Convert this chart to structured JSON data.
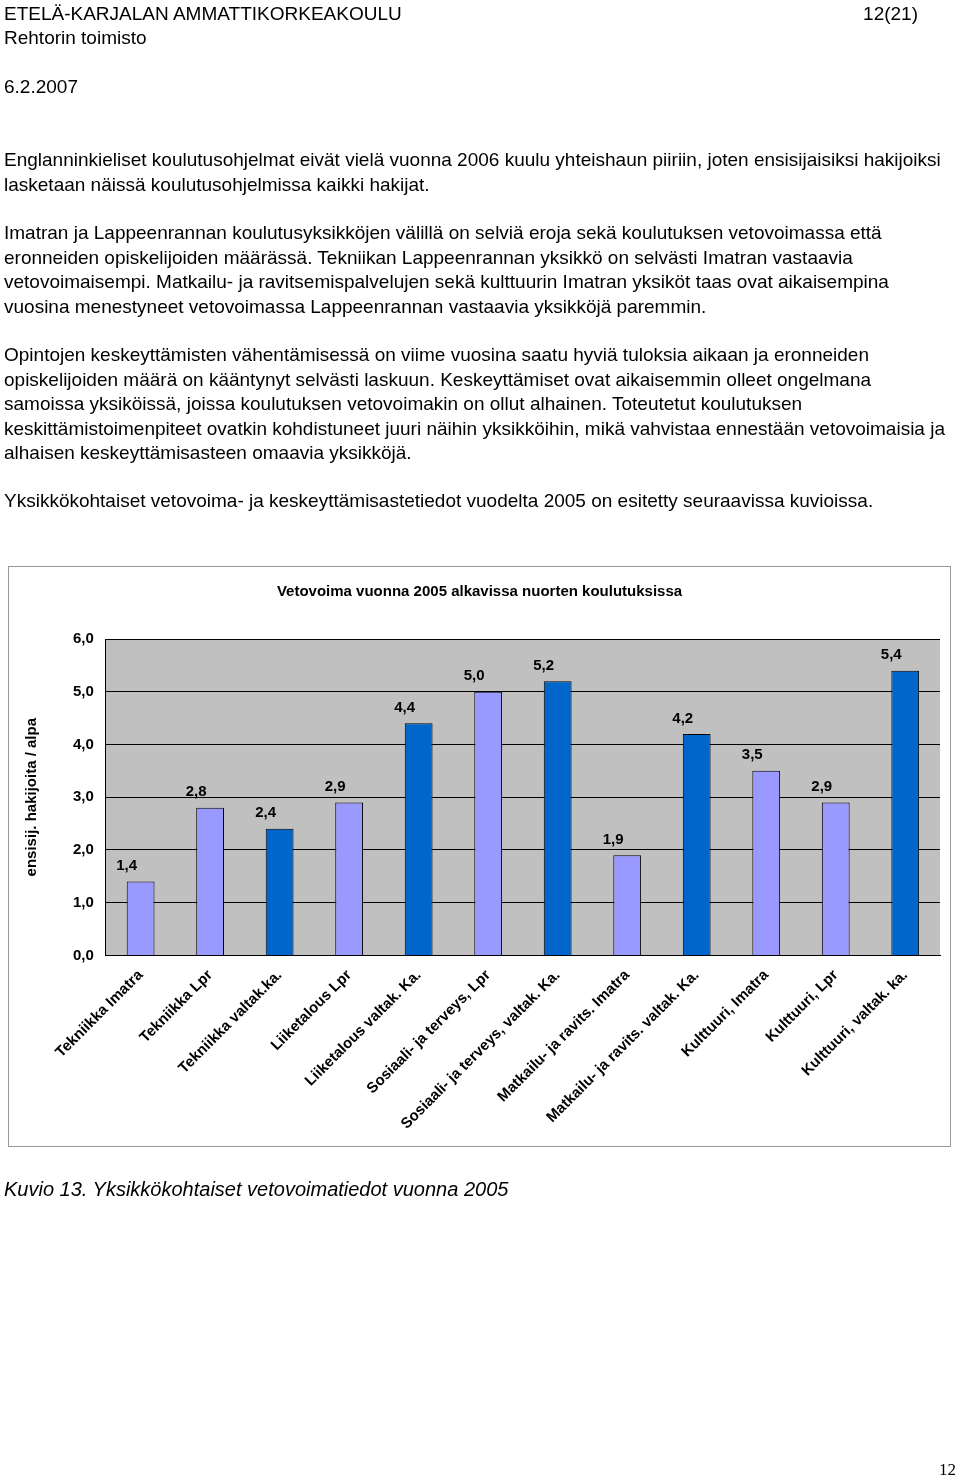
{
  "chart_data": {
    "type": "bar",
    "title": "Vetovoima vuonna 2005 alkavissa nuorten koulutuksissa",
    "ylabel": "ensisij. hakijoita / alpa",
    "categories": [
      "Tekniikka Imatra",
      "Tekniikka Lpr",
      "Tekniikka valtak.ka.",
      "Liiketalous Lpr",
      "Liiketalous valtak. Ka.",
      "Sosiaali- ja terveys, Lpr",
      "Sosiaali- ja terveys, valtak. Ka.",
      "Matkailu- ja ravits. Imatra",
      "Matkailu- ja ravits. valtak. Ka.",
      "Kulttuuri, Imatra",
      "Kulttuuri, Lpr",
      "Kulttuuri, valtak. ka."
    ],
    "values": [
      1.4,
      2.8,
      2.4,
      2.9,
      4.4,
      5.0,
      5.2,
      1.9,
      4.2,
      3.5,
      2.9,
      5.4
    ],
    "colors": [
      "#9999ff",
      "#9999ff",
      "#0066cc",
      "#9999ff",
      "#0066cc",
      "#9999ff",
      "#0066cc",
      "#9999ff",
      "#0066cc",
      "#9999ff",
      "#9999ff",
      "#0066cc"
    ],
    "value_labels": [
      "1,4",
      "2,8",
      "2,4",
      "2,9",
      "4,4",
      "5,0",
      "5,2",
      "1,9",
      "4,2",
      "3,5",
      "2,9",
      "5,4"
    ],
    "ylim": [
      0,
      6
    ],
    "yticks": [
      {
        "value": 0,
        "label": "0,0"
      },
      {
        "value": 1,
        "label": "1,0"
      },
      {
        "value": 2,
        "label": "2,0"
      },
      {
        "value": 3,
        "label": "3,0"
      },
      {
        "value": 4,
        "label": "4,0"
      },
      {
        "value": 5,
        "label": "5,0"
      },
      {
        "value": 6,
        "label": "6,0"
      }
    ],
    "grid": "y",
    "legend": false,
    "annotations": [
      "ETELÄ-KARJALAN AMMATTIKORKEAKOULU",
      "12(21)",
      "Rehtorin toimisto",
      "6.2.2007",
      "Englanninkieliset koulutusohjelmat eivät vielä vuonna 2006 kuulu yhteishaun piiriin, joten ensisijaisiksi hakijoiksi lasketaan näissä koulutusohjelmissa kaikki hakijat.",
      "Imatran ja Lappeenrannan koulutusyksikköjen välillä on selviä eroja sekä koulutuksen vetovoimassa että eronneiden opiskelijoiden määrässä. Tekniikan Lappeenrannan yksikkö on selvästi Imatran vastaavia vetovoimaisempi. Matkailu- ja ravitsemispalvelujen sekä kulttuurin Imatran yksiköt taas ovat aikaisempina vuosina menestyneet vetovoimassa Lappeenrannan vastaavia yksikköjä paremmin.",
      "Opintojen keskeyttämisten vähentämisessä on viime vuosina saatu hyviä tuloksia aikaan ja eronneiden opiskelijoiden määrä on kääntynyt selvästi laskuun. Keskeyttämiset ovat aikaisemmin olleet ongelmana samoissa yksiköissä, joissa koulutuksen vetovoimakin on ollut alhainen. Toteutetut koulutuksen keskittämistoimenpiteet ovatkin kohdistuneet juuri näihin yksikköihin, mikä vahvistaa ennestään vetovoimaisia ja alhaisen keskeyttämisasteen omaavia yksikköjä.",
      "Yksikkökohtaiset vetovoima- ja keskeyttämisastetiedot vuodelta 2005 on esitetty seuraavissa kuvioissa.",
      "Kuvio 13. Yksikkökohtaiset vetovoimatiedot vuonna 2005",
      "12"
    ]
  }
}
